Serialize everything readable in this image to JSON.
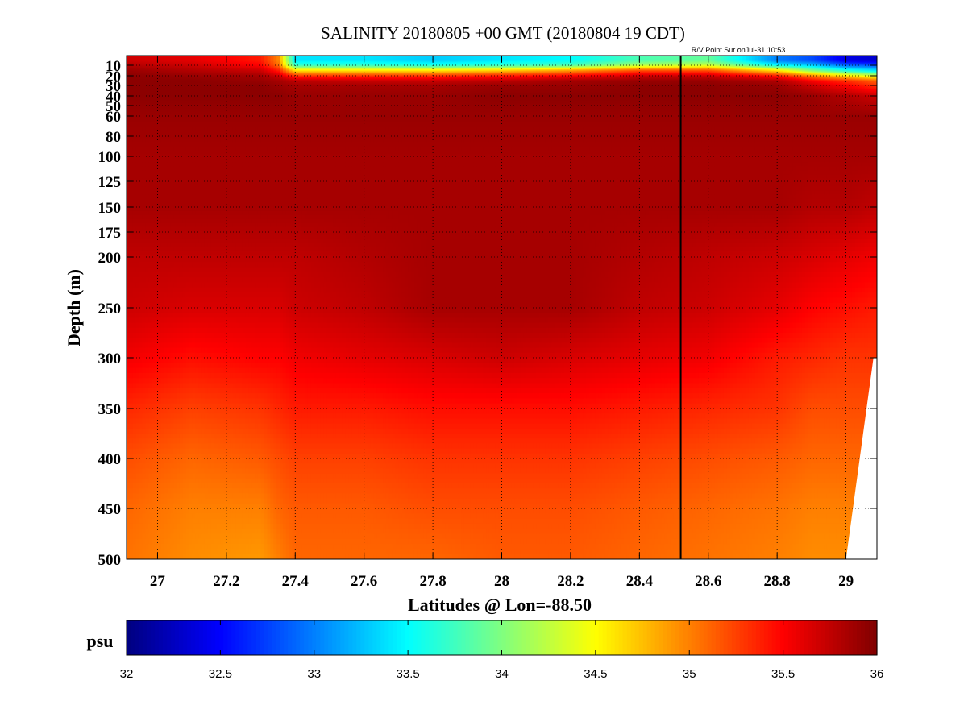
{
  "chart_data": {
    "type": "heatmap",
    "title": "SALINITY 20180805 +00 GMT (20180804 19 CDT)",
    "annotation": "R/V Point Sur onJul-31 10:53",
    "xlabel": "Latitudes @ Lon=-88.50",
    "ylabel": "Depth (m)",
    "xlim": [
      26.91,
      29.09
    ],
    "ylim": [
      0,
      500
    ],
    "y_axis_mapping": "piecewise, per depth tick",
    "x_ticks": [
      27,
      27.2,
      27.4,
      27.6,
      27.8,
      28,
      28.2,
      28.4,
      28.6,
      28.8,
      29
    ],
    "x_tick_labels": [
      "27",
      "27.2",
      "27.4",
      "27.6",
      "27.8",
      "28",
      "28.2",
      "28.4",
      "28.6",
      "28.8",
      "29"
    ],
    "y_ticks": [
      10,
      20,
      30,
      40,
      50,
      60,
      80,
      100,
      125,
      150,
      175,
      200,
      250,
      300,
      350,
      400,
      450,
      500
    ],
    "y_tick_labels": [
      "10",
      "20",
      "30",
      "40",
      "50",
      "60",
      "80",
      "100",
      "125",
      "150",
      "175",
      "200",
      "250",
      "300",
      "350",
      "400",
      "450",
      "500"
    ],
    "grid": "dotted",
    "ship_track_latitude": 28.52,
    "colorbar": {
      "label": "psu",
      "range": [
        32,
        36
      ],
      "ticks": [
        32,
        32.5,
        33,
        33.5,
        34,
        34.5,
        35,
        35.5,
        36
      ],
      "tick_labels": [
        "32",
        "32.5",
        "33",
        "33.5",
        "34",
        "34.5",
        "35",
        "35.5",
        "36"
      ],
      "colormap": "jet"
    },
    "grid_latitudes": [
      26.91,
      27.1,
      27.3,
      27.35,
      27.4,
      27.6,
      27.8,
      28.0,
      28.2,
      28.4,
      28.6,
      28.8,
      28.9,
      29.0,
      29.09
    ],
    "grid_depths": [
      5,
      10,
      15,
      20,
      25,
      30,
      40,
      60,
      100,
      150,
      200,
      250,
      300,
      350,
      400,
      450,
      500
    ],
    "salinity": [
      [
        35.7,
        35.6,
        35.4,
        35.0,
        33.4,
        33.4,
        33.3,
        33.4,
        33.5,
        33.8,
        33.9,
        33.0,
        32.8,
        32.4,
        32.3
      ],
      [
        35.8,
        35.7,
        35.5,
        35.1,
        33.7,
        33.7,
        33.6,
        33.7,
        33.8,
        34.2,
        34.3,
        33.5,
        33.3,
        32.9,
        32.8
      ],
      [
        35.9,
        35.8,
        35.7,
        35.4,
        34.6,
        34.6,
        34.6,
        34.7,
        34.9,
        35.2,
        35.2,
        34.6,
        34.0,
        33.6,
        33.4
      ],
      [
        35.95,
        35.9,
        35.85,
        35.7,
        35.3,
        35.3,
        35.3,
        35.4,
        35.5,
        35.7,
        35.7,
        35.4,
        35.0,
        34.6,
        34.3
      ],
      [
        35.95,
        35.95,
        35.9,
        35.85,
        35.75,
        35.7,
        35.7,
        35.75,
        35.85,
        35.9,
        35.9,
        35.8,
        35.5,
        35.3,
        35.1
      ],
      [
        35.95,
        35.95,
        35.95,
        35.9,
        35.85,
        35.85,
        35.85,
        35.9,
        35.9,
        35.95,
        35.95,
        35.9,
        35.7,
        35.5,
        35.3
      ],
      [
        35.95,
        35.95,
        35.95,
        35.95,
        35.9,
        35.9,
        35.9,
        35.95,
        35.95,
        35.95,
        35.95,
        35.95,
        35.9,
        35.8,
        35.7
      ],
      [
        35.9,
        35.9,
        35.9,
        35.9,
        35.9,
        35.9,
        35.9,
        35.9,
        35.9,
        35.9,
        35.9,
        35.9,
        35.9,
        35.9,
        35.9
      ],
      [
        35.85,
        35.85,
        35.85,
        35.85,
        35.85,
        35.85,
        35.85,
        35.85,
        35.85,
        35.85,
        35.85,
        35.85,
        35.85,
        35.85,
        35.85
      ],
      [
        35.85,
        35.85,
        35.85,
        35.85,
        35.85,
        35.85,
        35.85,
        35.85,
        35.85,
        35.85,
        35.85,
        35.85,
        35.8,
        35.8,
        35.75
      ],
      [
        35.75,
        35.75,
        35.75,
        35.75,
        35.75,
        35.8,
        35.85,
        35.85,
        35.85,
        35.8,
        35.75,
        35.7,
        35.65,
        35.6,
        35.55
      ],
      [
        35.7,
        35.65,
        35.65,
        35.65,
        35.7,
        35.75,
        35.85,
        35.85,
        35.85,
        35.75,
        35.7,
        35.6,
        35.5,
        35.45,
        35.4
      ],
      [
        35.55,
        35.45,
        35.5,
        35.5,
        35.55,
        35.6,
        35.65,
        35.7,
        35.65,
        35.6,
        35.55,
        35.4,
        35.35,
        35.3,
        35.3
      ],
      [
        35.35,
        35.25,
        35.3,
        35.35,
        35.4,
        35.4,
        35.45,
        35.45,
        35.45,
        35.4,
        35.35,
        35.3,
        35.2,
        35.2,
        35.2
      ],
      [
        35.2,
        35.1,
        35.15,
        35.2,
        35.25,
        35.25,
        35.3,
        35.3,
        35.3,
        35.25,
        35.2,
        35.15,
        35.1,
        35.1,
        35.1
      ],
      [
        35.1,
        35.0,
        35.0,
        35.1,
        35.15,
        35.15,
        35.2,
        35.2,
        35.2,
        35.15,
        35.1,
        35.05,
        35.0,
        35.0,
        35.0
      ],
      [
        35.05,
        34.95,
        34.9,
        35.0,
        35.1,
        35.1,
        35.1,
        35.15,
        35.15,
        35.1,
        35.05,
        35.0,
        34.95,
        34.95,
        34.95
      ]
    ],
    "no_data_region": [
      {
        "latitude": 29.08,
        "depth": 300
      },
      {
        "latitude": 29.09,
        "depth": 300
      },
      {
        "latitude": 29.09,
        "depth": 500
      },
      {
        "latitude": 29.0,
        "depth": 500
      }
    ]
  }
}
